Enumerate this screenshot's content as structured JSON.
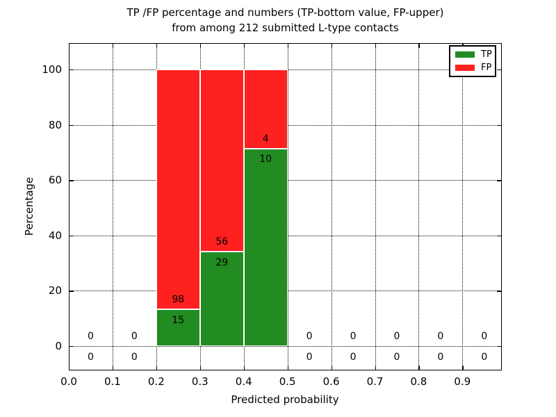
{
  "chart_data": {
    "type": "bar",
    "stacked": true,
    "title_lines": [
      "TP /FP percentage and numbers (TP-bottom value, FP-upper)",
      "from among 212 submitted L-type contacts"
    ],
    "xlabel": "Predicted probability",
    "ylabel": "Percentage",
    "total_contacts": 212,
    "xlim": [
      0.0,
      0.99
    ],
    "ylim": [
      -8.8,
      109.6
    ],
    "xticks": [
      0.0,
      0.1,
      0.2,
      0.3,
      0.4,
      0.5,
      0.6,
      0.7,
      0.8,
      0.9
    ],
    "xtick_labels": [
      "0.0",
      "0.1",
      "0.2",
      "0.3",
      "0.4",
      "0.5",
      "0.6",
      "0.7",
      "0.8",
      "0.9"
    ],
    "yticks": [
      0,
      20,
      40,
      60,
      80,
      100
    ],
    "ytick_labels": [
      "0",
      "20",
      "40",
      "60",
      "80",
      "100"
    ],
    "grid": "dotted",
    "legend_position": "upper-right",
    "series": [
      {
        "name": "TP",
        "color": "#228b22"
      },
      {
        "name": "FP",
        "color": "#ff2020"
      }
    ],
    "bins": [
      {
        "x0": 0.0,
        "x1": 0.1,
        "tp": 0,
        "fp": 0
      },
      {
        "x0": 0.1,
        "x1": 0.2,
        "tp": 0,
        "fp": 0
      },
      {
        "x0": 0.2,
        "x1": 0.3,
        "tp": 15,
        "fp": 98
      },
      {
        "x0": 0.3,
        "x1": 0.4,
        "tp": 29,
        "fp": 56
      },
      {
        "x0": 0.4,
        "x1": 0.5,
        "tp": 10,
        "fp": 4
      },
      {
        "x0": 0.5,
        "x1": 0.6,
        "tp": 0,
        "fp": 0
      },
      {
        "x0": 0.6,
        "x1": 0.7,
        "tp": 0,
        "fp": 0
      },
      {
        "x0": 0.7,
        "x1": 0.8,
        "tp": 0,
        "fp": 0
      },
      {
        "x0": 0.8,
        "x1": 0.9,
        "tp": 0,
        "fp": 0
      },
      {
        "x0": 0.9,
        "x1": 1.0,
        "tp": 0,
        "fp": 0
      }
    ],
    "tp_pct_per_bar": [
      13.27,
      34.12,
      71.43
    ],
    "bar_total_pct": 100
  }
}
